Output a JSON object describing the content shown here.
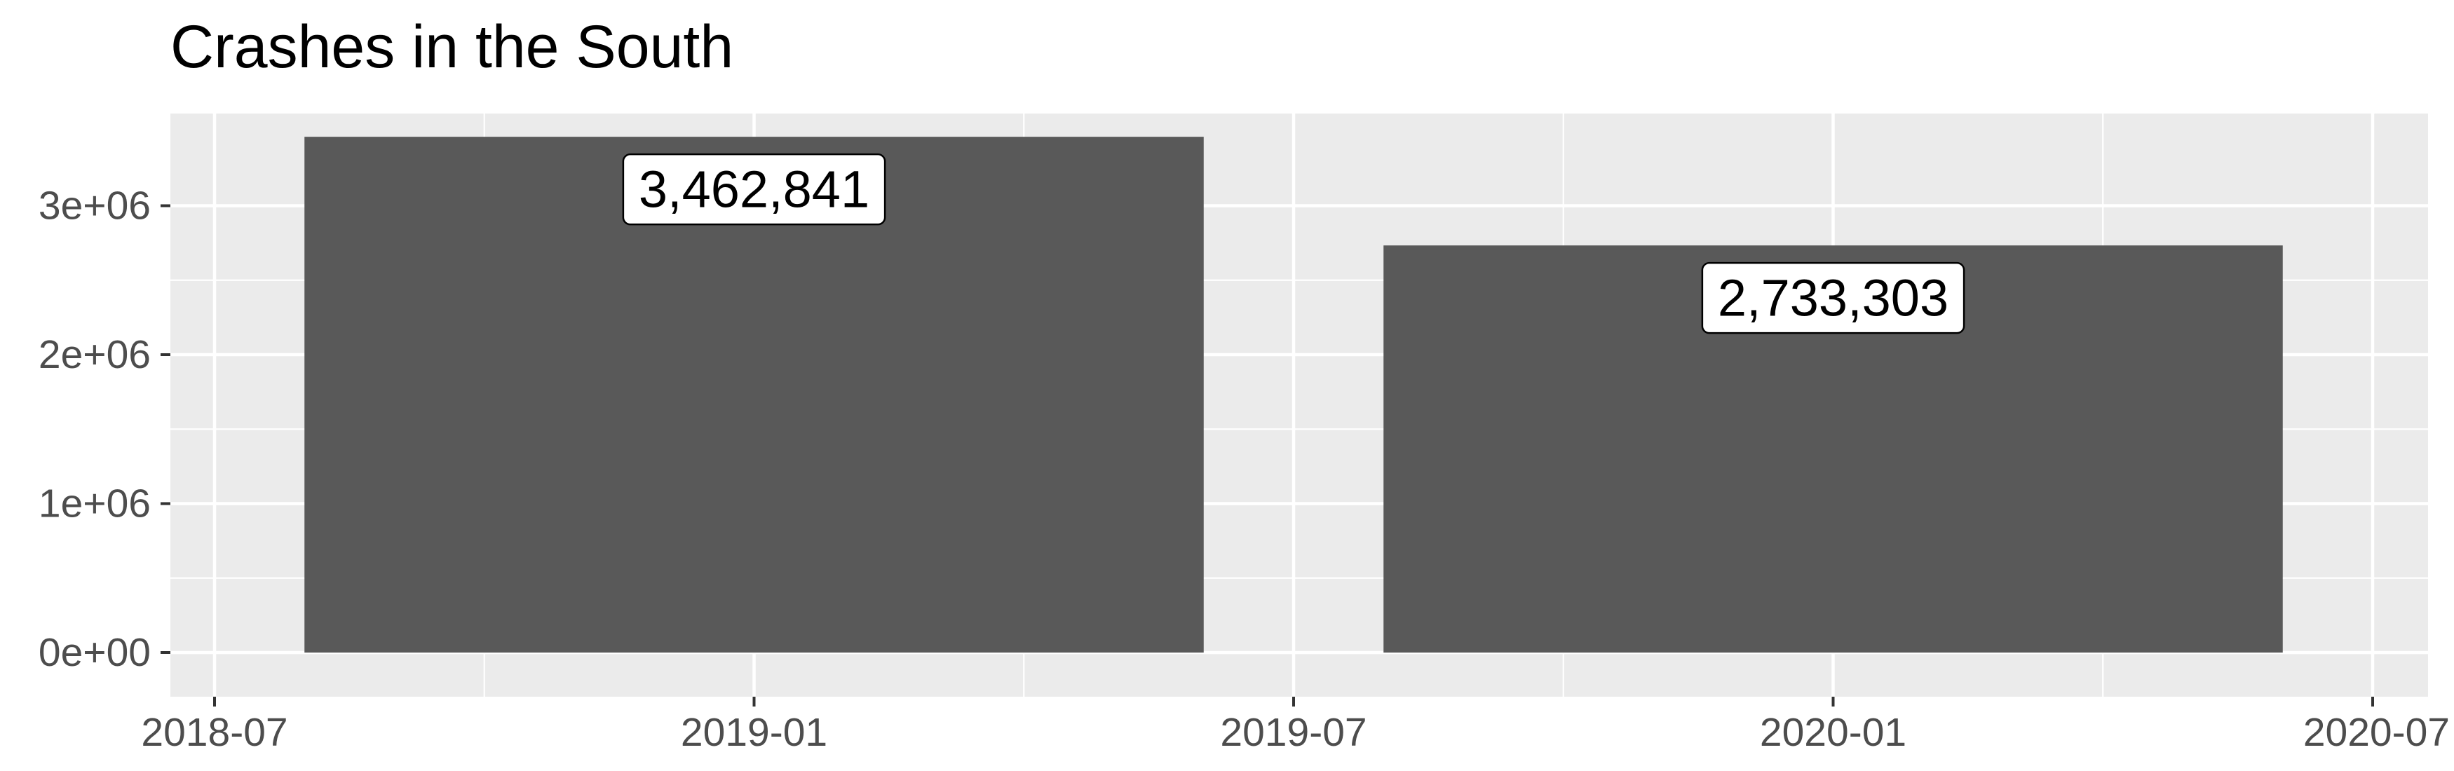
{
  "chart_data": {
    "type": "bar",
    "title": "Crashes in the South",
    "xlabel": "",
    "ylabel": "",
    "x_ticks": [
      "2018-07",
      "2019-01",
      "2019-07",
      "2020-01",
      "2020-07"
    ],
    "y_ticks": [
      "0e+00",
      "1e+06",
      "2e+06",
      "3e+06"
    ],
    "y_tick_values": [
      0,
      1000000,
      2000000,
      3000000
    ],
    "ylim": [
      0,
      3462841
    ],
    "xlim": [
      "2018-07",
      "2020-07"
    ],
    "bars": [
      {
        "start": "2018-08",
        "end": "2019-06",
        "value": 3462841,
        "label": "3,462,841"
      },
      {
        "start": "2019-08",
        "end": "2020-06",
        "value": 2733303,
        "label": "2,733,303"
      }
    ],
    "grid": true,
    "legend": "none",
    "colors": {
      "bar": "#595959",
      "panel": "#ebebeb",
      "grid": "#ffffff",
      "label_bg": "#ffffff",
      "label_border": "#000000"
    }
  }
}
